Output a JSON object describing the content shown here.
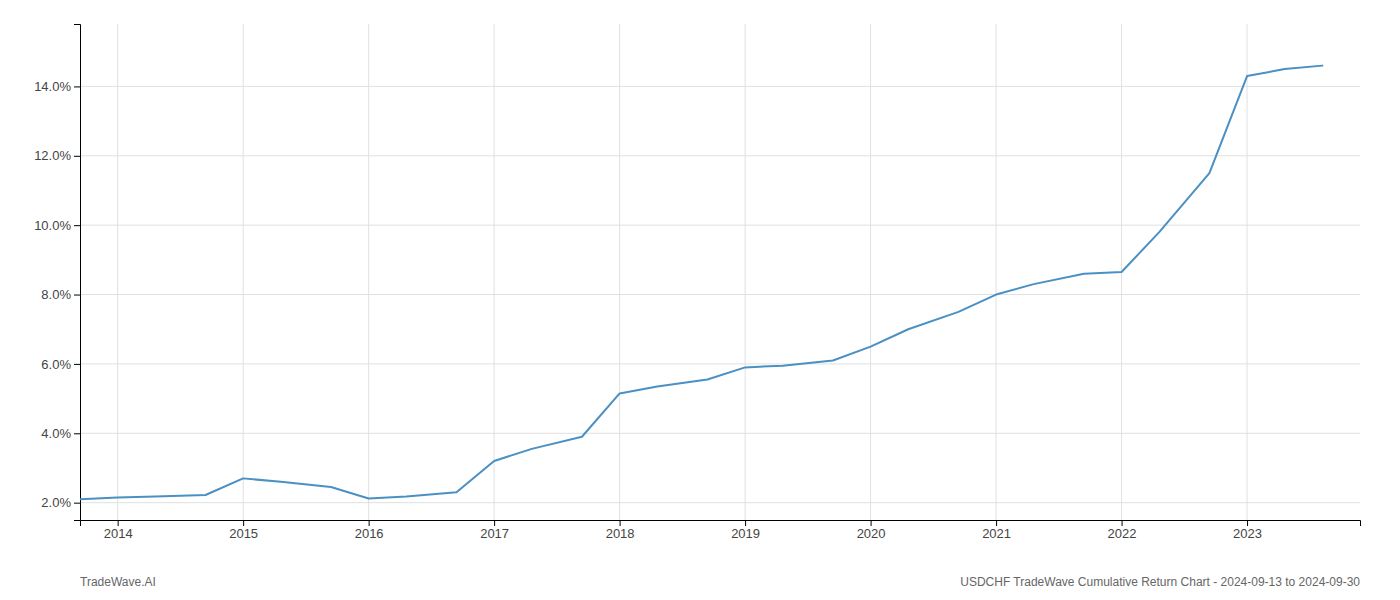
{
  "chart_data": {
    "type": "line",
    "title": "USDCHF TradeWave Cumulative Return Chart - 2024-09-13 to 2024-09-30",
    "annotations": [
      "TradeWave.AI"
    ],
    "x": [
      2013.7,
      2014.0,
      2014.3,
      2014.7,
      2015.0,
      2015.3,
      2015.7,
      2016.0,
      2016.3,
      2016.7,
      2017.0,
      2017.3,
      2017.7,
      2018.0,
      2018.3,
      2018.7,
      2019.0,
      2019.3,
      2019.7,
      2020.0,
      2020.3,
      2020.7,
      2021.0,
      2021.3,
      2021.7,
      2022.0,
      2022.3,
      2022.7,
      2023.0,
      2023.3,
      2023.6
    ],
    "values": [
      2.1,
      2.15,
      2.18,
      2.22,
      2.7,
      2.6,
      2.45,
      2.12,
      2.18,
      2.3,
      3.2,
      3.55,
      3.9,
      5.15,
      5.35,
      5.55,
      5.9,
      5.95,
      6.1,
      6.5,
      7.0,
      7.5,
      8.0,
      8.3,
      8.6,
      8.65,
      9.8,
      11.5,
      14.3,
      14.5,
      14.6
    ],
    "color": "#4a90c4",
    "xlim": [
      2013.7,
      2023.9
    ],
    "ylim": [
      1.5,
      15.8
    ],
    "xticks": [
      2014,
      2015,
      2016,
      2017,
      2018,
      2019,
      2020,
      2021,
      2022,
      2023
    ],
    "yticks": [
      {
        "value": 2.0,
        "label": "2.0%"
      },
      {
        "value": 4.0,
        "label": "4.0%"
      },
      {
        "value": 6.0,
        "label": "6.0%"
      },
      {
        "value": 8.0,
        "label": "8.0%"
      },
      {
        "value": 10.0,
        "label": "10.0%"
      },
      {
        "value": 12.0,
        "label": "12.0%"
      },
      {
        "value": 14.0,
        "label": "14.0%"
      }
    ],
    "grid": true
  }
}
